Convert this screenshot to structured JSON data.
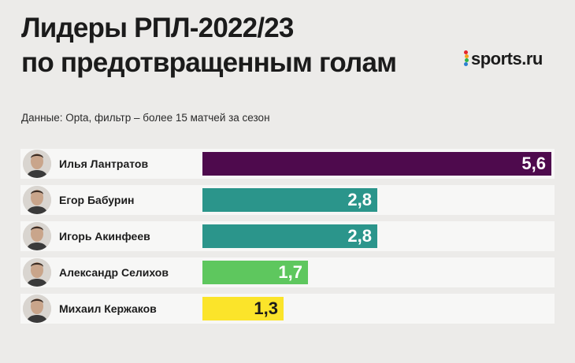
{
  "header": {
    "title_line1": "Лидеры РПЛ-2022/23",
    "title_line2": "по предотвращенным голам",
    "logo_text": "sports.ru",
    "source": "Данные: Opta, фильтр – более 15 матчей за сезон"
  },
  "colors": {
    "logo_dots": [
      "#e4252b",
      "#f6a21b",
      "#2fb24a",
      "#2b7fd0",
      "#8e3bb7"
    ]
  },
  "chart_data": {
    "type": "bar",
    "orientation": "horizontal",
    "categories": [
      "Илья Лантратов",
      "Егор Бабурин",
      "Игорь Акинфеев",
      "Александр Селихов",
      "Михаил Кержаков"
    ],
    "values": [
      5.6,
      2.8,
      2.8,
      1.7,
      1.3
    ],
    "value_labels": [
      "5,6",
      "2,8",
      "2,8",
      "1,7",
      "1,3"
    ],
    "bar_colors": [
      "#4e0a4d",
      "#2b958b",
      "#2b958b",
      "#5ec75e",
      "#fbe42a"
    ],
    "label_colors": [
      "#ffffff",
      "#ffffff",
      "#ffffff",
      "#ffffff",
      "#1b1b1b"
    ],
    "xlim": [
      0,
      5.6
    ],
    "grid": false,
    "legend": "none"
  }
}
